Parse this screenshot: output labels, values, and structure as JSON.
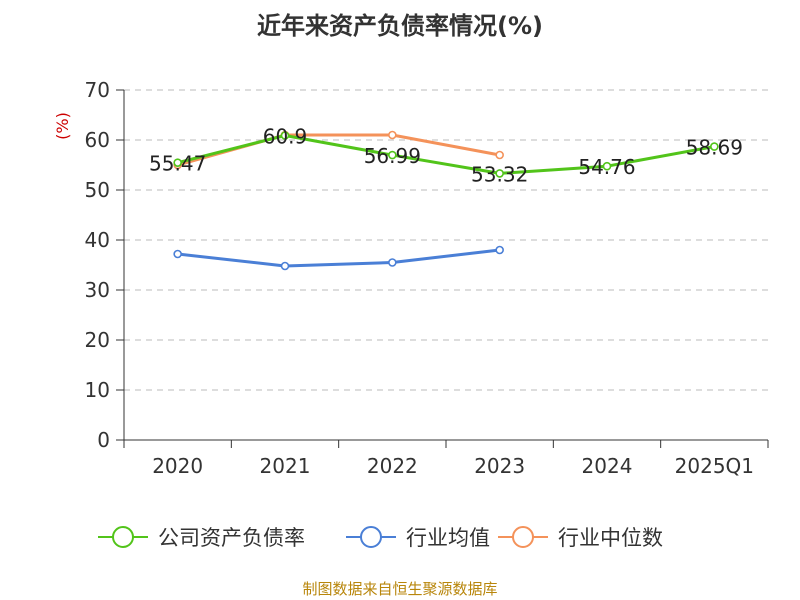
{
  "chart_data": {
    "type": "line",
    "title": "近年来资产负债率情况(%)",
    "ylabel": "(%)",
    "xlabel": "",
    "ylim": [
      0,
      70
    ],
    "yticks": [
      0,
      10,
      20,
      30,
      40,
      50,
      60,
      70
    ],
    "grid": true,
    "legend_position": "bottom",
    "categories": [
      "2020",
      "2021",
      "2022",
      "2023",
      "2024",
      "2025Q1"
    ],
    "series": [
      {
        "name": "公司资产负债率",
        "color": "#52c41a",
        "values": [
          55.47,
          60.9,
          56.99,
          53.32,
          54.76,
          58.69
        ],
        "show_labels": true
      },
      {
        "name": "行业均值",
        "color": "#4a7fd6",
        "values": [
          37.2,
          34.8,
          35.5,
          38.0,
          null,
          null
        ],
        "show_labels": false
      },
      {
        "name": "行业中位数",
        "color": "#f4925a",
        "values": [
          55.0,
          61.0,
          61.0,
          57.0,
          null,
          null
        ],
        "show_labels": false
      }
    ],
    "source_note": "制图数据来自恒生聚源数据库"
  }
}
